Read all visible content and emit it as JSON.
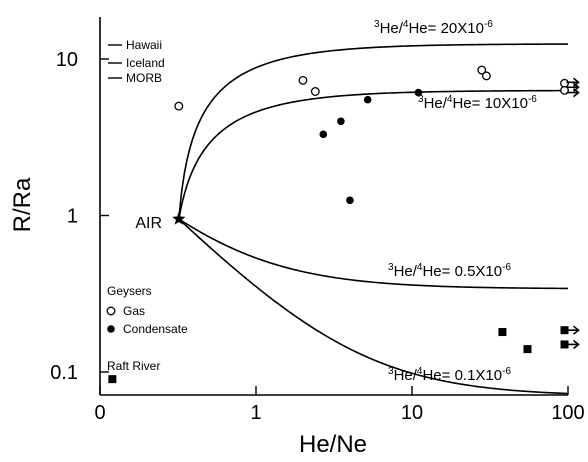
{
  "chart_data": {
    "type": "scatter",
    "xlabel": "He/Ne",
    "ylabel": "R/Ra",
    "x_scale": "log",
    "y_scale": "log",
    "xlim": [
      0.1,
      100
    ],
    "ylim": [
      0.07,
      20
    ],
    "x_ticks": [
      {
        "value": 0.1,
        "label": "0"
      },
      {
        "value": 1,
        "label": "1"
      },
      {
        "value": 10,
        "label": "10"
      },
      {
        "value": 100,
        "label": "100"
      }
    ],
    "y_ticks": [
      {
        "value": 0.1,
        "label": "0.1"
      },
      {
        "value": 1,
        "label": "1"
      },
      {
        "value": 10,
        "label": "10"
      }
    ],
    "grid": false,
    "air_point": {
      "label": "AIR",
      "x": 0.32,
      "y": 0.95
    },
    "mixing_curves": [
      {
        "label_base": "He/",
        "label_mid": "He= ",
        "label_value": "20X10",
        "exponent": "-6",
        "iso_a": "3",
        "iso_b": "4",
        "endmember_r": 12.5
      },
      {
        "label_base": "He/",
        "label_mid": "He= ",
        "label_value": "10X10",
        "exponent": "-6",
        "iso_a": "3",
        "iso_b": "4",
        "endmember_r": 6.3
      },
      {
        "label_base": "He/",
        "label_mid": "He= ",
        "label_value": "0.5X10",
        "exponent": "-6",
        "iso_a": "3",
        "iso_b": "4",
        "endmember_r": 0.34
      },
      {
        "label_base": "He/",
        "label_mid": "He= ",
        "label_value": "0.1X10",
        "exponent": "-6",
        "iso_a": "3",
        "iso_b": "4",
        "endmember_r": 0.07
      }
    ],
    "legend_top": [
      "Hawaii",
      "Iceland",
      "MORB"
    ],
    "legend_bottom": {
      "group_title": "Geysers",
      "gas_label": "Gas",
      "condensate_label": "Condensate",
      "raft_label": "Raft River"
    },
    "series": [
      {
        "name": "Gas",
        "marker": "open-circle",
        "points": [
          [
            0.32,
            5.0
          ],
          [
            2.0,
            7.3
          ],
          [
            2.4,
            6.2
          ],
          [
            28,
            8.5
          ],
          [
            30,
            7.8
          ],
          [
            95,
            7.0
          ],
          [
            95,
            6.3
          ]
        ]
      },
      {
        "name": "Condensate",
        "marker": "filled-circle",
        "points": [
          [
            2.7,
            3.3
          ],
          [
            3.5,
            4.0
          ],
          [
            4.0,
            1.25
          ],
          [
            5.2,
            5.5
          ],
          [
            11,
            6.1
          ]
        ]
      },
      {
        "name": "Raft River",
        "marker": "filled-square",
        "points": [
          [
            0.12,
            0.09
          ],
          [
            38,
            0.18
          ],
          [
            55,
            0.14
          ],
          [
            95,
            0.185
          ],
          [
            95,
            0.15
          ]
        ]
      }
    ],
    "arrows": [
      {
        "x": 95,
        "y": 7.1
      },
      {
        "x": 95,
        "y": 6.6
      },
      {
        "x": 95,
        "y": 6.1
      },
      {
        "x": 95,
        "y": 0.185
      },
      {
        "x": 95,
        "y": 0.15
      }
    ]
  }
}
